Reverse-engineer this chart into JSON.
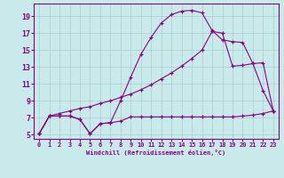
{
  "xlabel": "Windchill (Refroidissement éolien,°C)",
  "background_color": "#c8eaea",
  "line_color": "#880088",
  "grid_color": "#aacccc",
  "ylim": [
    4.5,
    20.5
  ],
  "xlim": [
    -0.5,
    23.5
  ],
  "yticks": [
    5,
    7,
    9,
    11,
    13,
    15,
    17,
    19
  ],
  "xticks": [
    0,
    1,
    2,
    3,
    4,
    5,
    6,
    7,
    8,
    9,
    10,
    11,
    12,
    13,
    14,
    15,
    16,
    17,
    18,
    19,
    20,
    21,
    22,
    23
  ],
  "line1_x": [
    0,
    1,
    2,
    3,
    4,
    5,
    6,
    7,
    8,
    9,
    10,
    11,
    12,
    13,
    14,
    15,
    16,
    17,
    18,
    19,
    20,
    21,
    22,
    23
  ],
  "line1_y": [
    5.1,
    7.2,
    7.2,
    7.2,
    6.8,
    5.1,
    6.3,
    6.4,
    6.6,
    7.1,
    7.1,
    7.1,
    7.1,
    7.1,
    7.1,
    7.1,
    7.1,
    7.1,
    7.1,
    7.1,
    7.2,
    7.3,
    7.5,
    7.8
  ],
  "line2_x": [
    0,
    1,
    2,
    3,
    4,
    5,
    6,
    7,
    8,
    9,
    10,
    11,
    12,
    13,
    14,
    15,
    16,
    17,
    18,
    19,
    20,
    21,
    22,
    23
  ],
  "line2_y": [
    5.1,
    7.2,
    7.5,
    7.8,
    8.1,
    8.3,
    8.7,
    9.0,
    9.4,
    9.8,
    10.3,
    10.9,
    11.6,
    12.3,
    13.1,
    14.0,
    15.0,
    17.2,
    17.0,
    13.1,
    13.2,
    13.4,
    13.5,
    7.8
  ],
  "line3_x": [
    0,
    1,
    2,
    3,
    4,
    5,
    6,
    7,
    8,
    9,
    10,
    11,
    12,
    13,
    14,
    15,
    16,
    17,
    18,
    19,
    20,
    21,
    22,
    23
  ],
  "line3_y": [
    5.1,
    7.2,
    7.2,
    7.2,
    6.8,
    5.1,
    6.3,
    6.4,
    9.0,
    11.8,
    14.5,
    16.5,
    18.2,
    19.2,
    19.6,
    19.7,
    19.4,
    17.3,
    16.2,
    16.0,
    15.9,
    13.4,
    10.2,
    7.8
  ]
}
